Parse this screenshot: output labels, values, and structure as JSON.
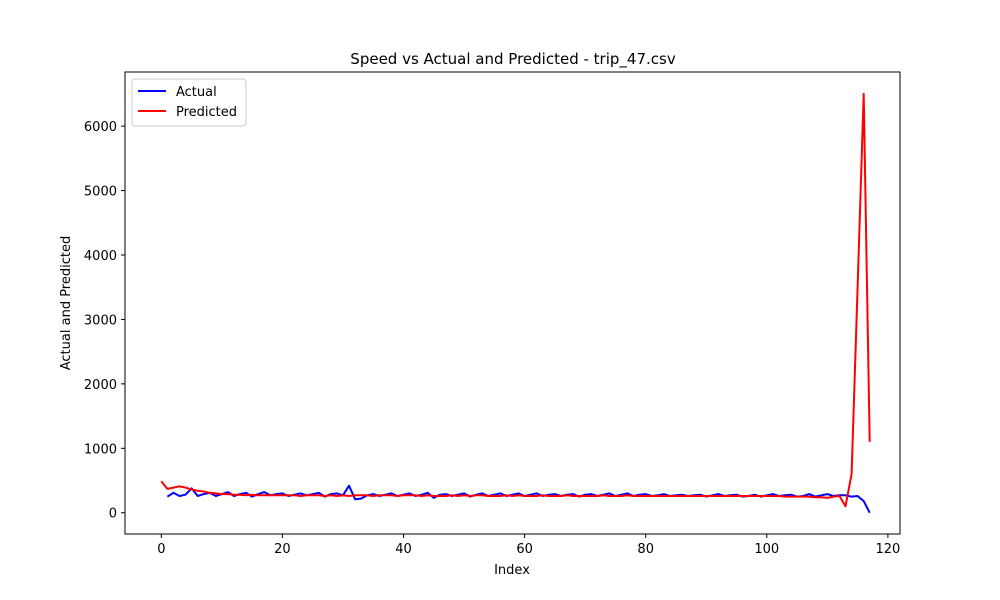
{
  "chart_data": {
    "type": "line",
    "title": "Speed vs Actual and Predicted - trip_47.csv",
    "xlabel": "Index",
    "ylabel": "Actual and Predicted",
    "xlim": [
      -6,
      122
    ],
    "ylim": [
      -330,
      6840
    ],
    "xticks": [
      0,
      20,
      40,
      60,
      80,
      100,
      120
    ],
    "yticks": [
      0,
      1000,
      2000,
      3000,
      4000,
      5000,
      6000
    ],
    "xtick_labels": [
      "0",
      "20",
      "40",
      "60",
      "80",
      "100",
      "120"
    ],
    "ytick_labels": [
      "0",
      "1000",
      "2000",
      "3000",
      "4000",
      "5000",
      "6000"
    ],
    "grid": false,
    "legend_position": "top-left",
    "series": [
      {
        "name": "Actual",
        "color": "#0000ff",
        "x": [
          1,
          2,
          3,
          4,
          5,
          6,
          7,
          8,
          9,
          10,
          11,
          12,
          13,
          14,
          15,
          16,
          17,
          18,
          19,
          20,
          21,
          22,
          23,
          24,
          25,
          26,
          27,
          28,
          29,
          30,
          31,
          32,
          33,
          34,
          35,
          36,
          37,
          38,
          39,
          40,
          41,
          42,
          43,
          44,
          45,
          46,
          47,
          48,
          49,
          50,
          51,
          52,
          53,
          54,
          55,
          56,
          57,
          58,
          59,
          60,
          61,
          62,
          63,
          64,
          65,
          66,
          67,
          68,
          69,
          70,
          71,
          72,
          73,
          74,
          75,
          76,
          77,
          78,
          79,
          80,
          81,
          82,
          83,
          84,
          85,
          86,
          87,
          88,
          89,
          90,
          91,
          92,
          93,
          94,
          95,
          96,
          97,
          98,
          99,
          100,
          101,
          102,
          103,
          104,
          105,
          106,
          107,
          108,
          109,
          110,
          111,
          112,
          113,
          114,
          115,
          116,
          117
        ],
        "y": [
          250,
          310,
          260,
          280,
          380,
          260,
          290,
          310,
          260,
          290,
          320,
          260,
          290,
          310,
          250,
          290,
          320,
          270,
          290,
          300,
          260,
          280,
          300,
          270,
          290,
          310,
          250,
          290,
          300,
          270,
          420,
          210,
          220,
          270,
          290,
          260,
          280,
          300,
          260,
          280,
          300,
          260,
          280,
          310,
          230,
          280,
          290,
          260,
          280,
          300,
          250,
          280,
          300,
          260,
          280,
          300,
          260,
          280,
          300,
          260,
          280,
          300,
          260,
          280,
          290,
          260,
          280,
          290,
          250,
          280,
          290,
          260,
          280,
          300,
          260,
          280,
          300,
          260,
          280,
          290,
          260,
          270,
          290,
          260,
          270,
          280,
          260,
          270,
          280,
          250,
          270,
          290,
          260,
          270,
          280,
          250,
          260,
          280,
          250,
          270,
          290,
          260,
          270,
          280,
          250,
          260,
          290,
          250,
          270,
          290,
          260,
          270,
          270,
          250,
          260,
          180,
          0
        ]
      },
      {
        "name": "Predicted",
        "color": "#ff0000",
        "x": [
          0,
          1,
          2,
          3,
          4,
          5,
          6,
          7,
          8,
          9,
          10,
          11,
          12,
          13,
          14,
          15,
          16,
          17,
          18,
          19,
          20,
          21,
          22,
          23,
          24,
          25,
          26,
          27,
          28,
          29,
          30,
          31,
          32,
          33,
          34,
          35,
          36,
          37,
          38,
          39,
          40,
          41,
          42,
          43,
          44,
          45,
          46,
          47,
          48,
          49,
          50,
          51,
          52,
          53,
          54,
          55,
          56,
          57,
          58,
          59,
          60,
          61,
          62,
          63,
          64,
          65,
          66,
          67,
          68,
          69,
          70,
          71,
          72,
          73,
          74,
          75,
          76,
          77,
          78,
          79,
          80,
          81,
          82,
          83,
          84,
          85,
          86,
          87,
          88,
          89,
          90,
          91,
          92,
          93,
          94,
          95,
          96,
          97,
          98,
          99,
          100,
          101,
          102,
          103,
          104,
          105,
          106,
          107,
          108,
          109,
          110,
          111,
          112,
          113,
          114,
          115,
          116,
          117
        ],
        "y": [
          490,
          370,
          390,
          410,
          390,
          360,
          340,
          330,
          310,
          300,
          290,
          290,
          280,
          280,
          270,
          280,
          270,
          270,
          270,
          270,
          270,
          270,
          270,
          260,
          270,
          270,
          270,
          260,
          270,
          260,
          270,
          260,
          270,
          270,
          270,
          260,
          270,
          270,
          270,
          260,
          270,
          270,
          270,
          260,
          270,
          260,
          260,
          260,
          270,
          260,
          270,
          260,
          270,
          270,
          260,
          260,
          260,
          270,
          260,
          270,
          260,
          260,
          260,
          270,
          260,
          260,
          260,
          270,
          260,
          260,
          260,
          260,
          260,
          270,
          260,
          260,
          260,
          270,
          260,
          260,
          260,
          260,
          260,
          260,
          260,
          260,
          260,
          260,
          260,
          260,
          260,
          260,
          260,
          260,
          260,
          260,
          260,
          260,
          260,
          260,
          260,
          260,
          260,
          250,
          250,
          250,
          250,
          250,
          240,
          240,
          230,
          250,
          260,
          100,
          600,
          3500,
          6500,
          1100
        ]
      }
    ]
  }
}
